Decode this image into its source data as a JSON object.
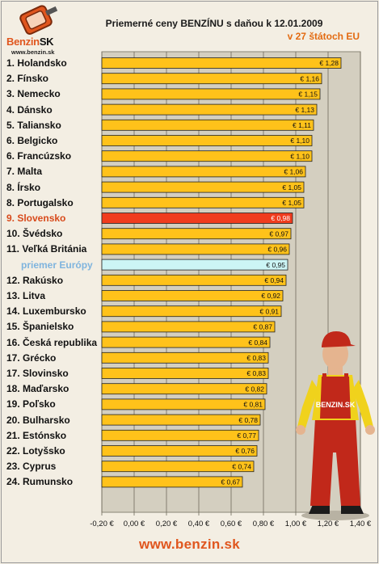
{
  "brand": {
    "logo_word": "Benzin",
    "logo_sk": "SK",
    "logo_url": "www.benzin.sk",
    "mascot_text": "BENZIN.SK"
  },
  "title": "Priemerné ceny BENZÍNU s daňou k 12.01.2009",
  "subtitle": "v 27 štátoch EU",
  "footer": "www.benzin.sk",
  "colors": {
    "bar": "#ffc21a",
    "highlight": "#f03c1e",
    "average": "#ccf5f5",
    "plot_bg": "#d4cfc0",
    "highlight_text": "#d84a1b",
    "average_text": "#7fb4de"
  },
  "chart_data": {
    "type": "bar",
    "orientation": "horizontal",
    "title": "Priemerné ceny BENZÍNU s daňou k 12.01.2009",
    "subtitle": "v 27 štátoch EU",
    "xlim": [
      -0.2,
      1.4
    ],
    "ticks": [
      "-0,20 €",
      "0,00 €",
      "0,20 €",
      "0,40 €",
      "0,60 €",
      "0,80 €",
      "1,00 €",
      "1,20 €",
      "1,40 €"
    ],
    "tick_values": [
      -0.2,
      0,
      0.2,
      0.4,
      0.6,
      0.8,
      1.0,
      1.2,
      1.4
    ],
    "grid": true,
    "categories": [
      "1. Holandsko",
      "2. Fínsko",
      "3. Nemecko",
      "4. Dánsko",
      "5. Taliansko",
      "6. Belgicko",
      "6. Francúzsko",
      "7. Malta",
      "8. Írsko",
      "8. Portugalsko",
      "9. Slovensko",
      "10. Švédsko",
      "11. Veľká Británia",
      "priemer Európy",
      "12. Rakúsko",
      "13. Litva",
      "14. Luxembursko",
      "15. Španielsko",
      "16. Česká republika",
      "17. Grécko",
      "17. Slovinsko",
      "18. Maďarsko",
      "19. Poľsko",
      "20. Bulharsko",
      "21. Estónsko",
      "22. Lotyšsko",
      "23. Cyprus",
      "24. Rumunsko"
    ],
    "values": [
      1.28,
      1.16,
      1.15,
      1.13,
      1.11,
      1.1,
      1.1,
      1.06,
      1.05,
      1.05,
      0.98,
      0.97,
      0.96,
      0.95,
      0.94,
      0.92,
      0.91,
      0.87,
      0.84,
      0.83,
      0.83,
      0.82,
      0.81,
      0.78,
      0.77,
      0.76,
      0.74,
      0.67
    ],
    "value_labels": [
      "€ 1,28",
      "€ 1,16",
      "€ 1,15",
      "€ 1,13",
      "€ 1,11",
      "€ 1,10",
      "€ 1,10",
      "€ 1,06",
      "€ 1,05",
      "€ 1,05",
      "€ 0,98",
      "€ 0,97",
      "€ 0,96",
      "€ 0,95",
      "€ 0,94",
      "€ 0,92",
      "€ 0,91",
      "€ 0,87",
      "€ 0,84",
      "€ 0,83",
      "€ 0,83",
      "€ 0,82",
      "€ 0,81",
      "€ 0,78",
      "€ 0,77",
      "€ 0,76",
      "€ 0,74",
      "€ 0,67"
    ],
    "highlight_index": 10,
    "average_index": 13
  }
}
